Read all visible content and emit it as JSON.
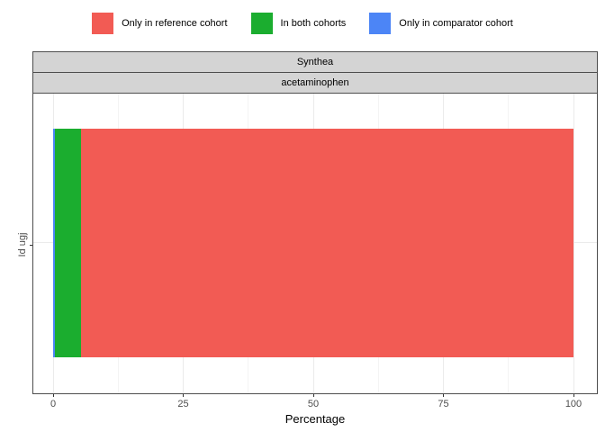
{
  "chart_data": {
    "type": "bar",
    "orientation": "horizontal",
    "stacked": true,
    "facet_labels": [
      "Synthea",
      "acetaminophen"
    ],
    "categories": [
      "Id ugj"
    ],
    "series": [
      {
        "name": "Only in comparator cohort",
        "color": "#4c85f6",
        "values": [
          0.4
        ]
      },
      {
        "name": "In both cohorts",
        "color": "#1bad2f",
        "values": [
          4.9
        ]
      },
      {
        "name": "Only in reference cohort",
        "color": "#f25b54",
        "values": [
          94.7
        ]
      }
    ],
    "xlabel": "Percentage",
    "ylabel": "",
    "xlim": [
      0,
      100
    ],
    "x_ticks": [
      0,
      25,
      50,
      75,
      100
    ],
    "x_minor_ticks": [
      12.5,
      37.5,
      62.5,
      87.5
    ],
    "grid": true,
    "legend_position": "top",
    "legend": [
      {
        "label": "Only in reference cohort",
        "color": "#f25b54"
      },
      {
        "label": "In both cohorts",
        "color": "#1bad2f"
      },
      {
        "label": "Only in comparator cohort",
        "color": "#4c85f6"
      }
    ]
  },
  "colors": {
    "panel_border": "#4d4d4d",
    "strip_fill": "#d4d4d4",
    "grid_major": "#ebebeb",
    "grid_minor": "#f4f4f4",
    "axis_text": "#4d4d4d"
  }
}
